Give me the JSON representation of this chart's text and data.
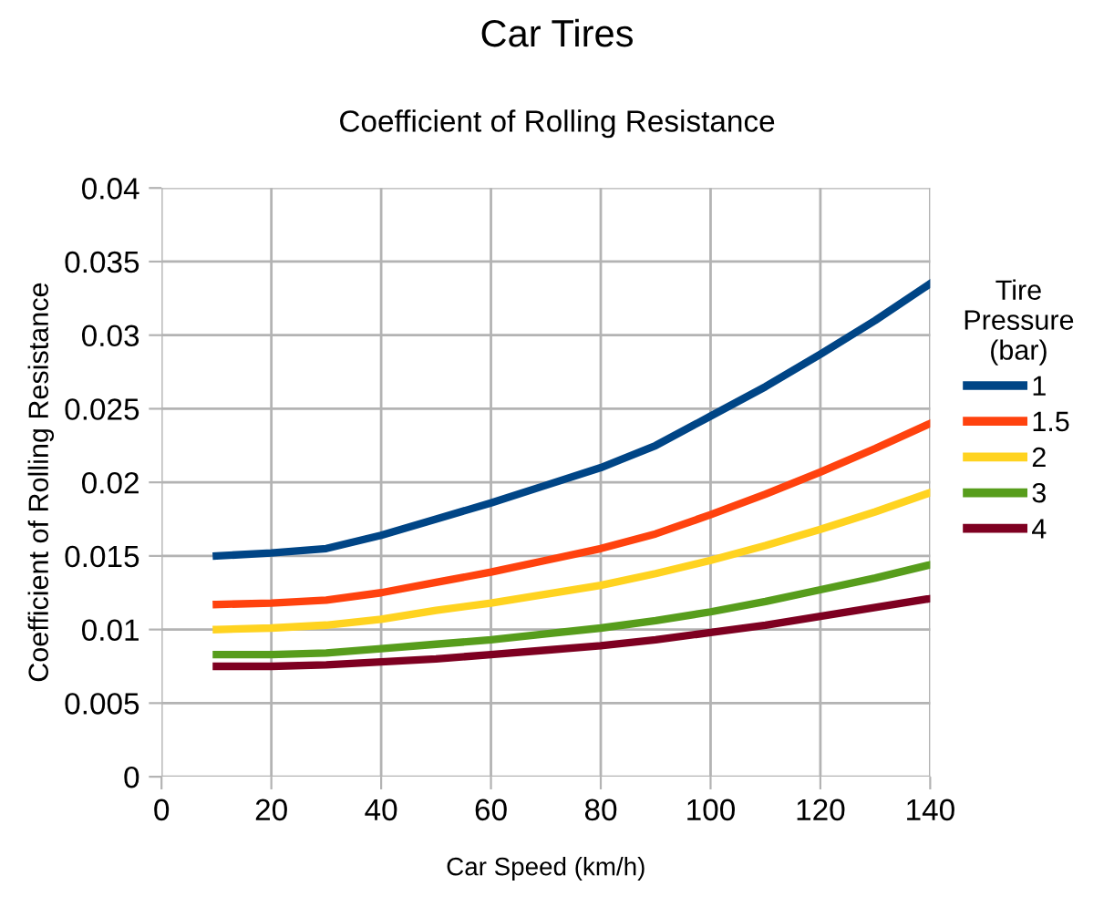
{
  "chart_data": {
    "type": "line",
    "title": "Car Tires",
    "subtitle": "Coefficient of Rolling Resistance",
    "xlabel": "Car Speed (km/h)",
    "ylabel": "Coefficient of Rolling Resistance",
    "legend_title": "Tire\nPressure\n(bar)",
    "x": [
      10,
      20,
      30,
      40,
      50,
      60,
      70,
      80,
      90,
      100,
      110,
      120,
      130,
      140
    ],
    "series": [
      {
        "name": "1",
        "color": "#004586",
        "values": [
          0.015,
          0.0152,
          0.0155,
          0.0164,
          0.0175,
          0.0186,
          0.0198,
          0.021,
          0.0225,
          0.0245,
          0.0265,
          0.0287,
          0.031,
          0.0335
        ]
      },
      {
        "name": "1.5",
        "color": "#ff420e",
        "values": [
          0.0117,
          0.0118,
          0.012,
          0.0125,
          0.0132,
          0.0139,
          0.0147,
          0.0155,
          0.0165,
          0.0178,
          0.0192,
          0.0207,
          0.0223,
          0.024
        ]
      },
      {
        "name": "2",
        "color": "#ffd320",
        "values": [
          0.01,
          0.0101,
          0.0103,
          0.0107,
          0.0113,
          0.0118,
          0.0124,
          0.013,
          0.0138,
          0.0147,
          0.0157,
          0.0168,
          0.018,
          0.0193
        ]
      },
      {
        "name": "3",
        "color": "#579d1c",
        "values": [
          0.0083,
          0.0083,
          0.0084,
          0.0087,
          0.009,
          0.0093,
          0.0097,
          0.0101,
          0.0106,
          0.0112,
          0.0119,
          0.0127,
          0.0135,
          0.0144
        ]
      },
      {
        "name": "4",
        "color": "#7e0021",
        "values": [
          0.0075,
          0.0075,
          0.0076,
          0.0078,
          0.008,
          0.0083,
          0.0086,
          0.0089,
          0.0093,
          0.0098,
          0.0103,
          0.0109,
          0.0115,
          0.0121
        ]
      }
    ],
    "xlim": [
      0,
      140
    ],
    "xticks": [
      0,
      20,
      40,
      60,
      80,
      100,
      120,
      140
    ],
    "ylim": [
      0,
      0.04
    ],
    "yticks": [
      0,
      0.005,
      0.01,
      0.015,
      0.02,
      0.025,
      0.03,
      0.035,
      0.04
    ],
    "grid": true,
    "legend": "right",
    "marker": "none",
    "line_style": "solid"
  }
}
